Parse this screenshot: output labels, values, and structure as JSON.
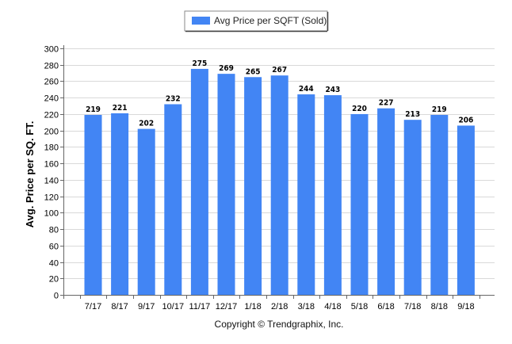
{
  "chart_data": {
    "type": "bar",
    "categories": [
      "7/17",
      "8/17",
      "9/17",
      "10/17",
      "11/17",
      "12/17",
      "1/18",
      "2/18",
      "3/18",
      "4/18",
      "5/18",
      "6/18",
      "7/18",
      "8/18",
      "9/18"
    ],
    "series": [
      {
        "name": "Avg Price per SQFT (Sold)",
        "color": "#4285f4",
        "values": [
          219,
          221,
          202,
          232,
          275,
          269,
          265,
          267,
          244,
          243,
          220,
          227,
          213,
          219,
          206
        ]
      }
    ],
    "title": "",
    "xlabel": "",
    "ylabel": "Avg. Price per SQ. FT.",
    "ylim": [
      0,
      300
    ],
    "yticks": [
      0,
      20,
      40,
      60,
      80,
      100,
      120,
      140,
      160,
      180,
      200,
      220,
      240,
      260,
      280,
      300
    ],
    "grid": true,
    "legend_position": "top-center",
    "data_labels": true
  },
  "footer": {
    "copyright": "Copyright © Trendgraphix, Inc."
  }
}
